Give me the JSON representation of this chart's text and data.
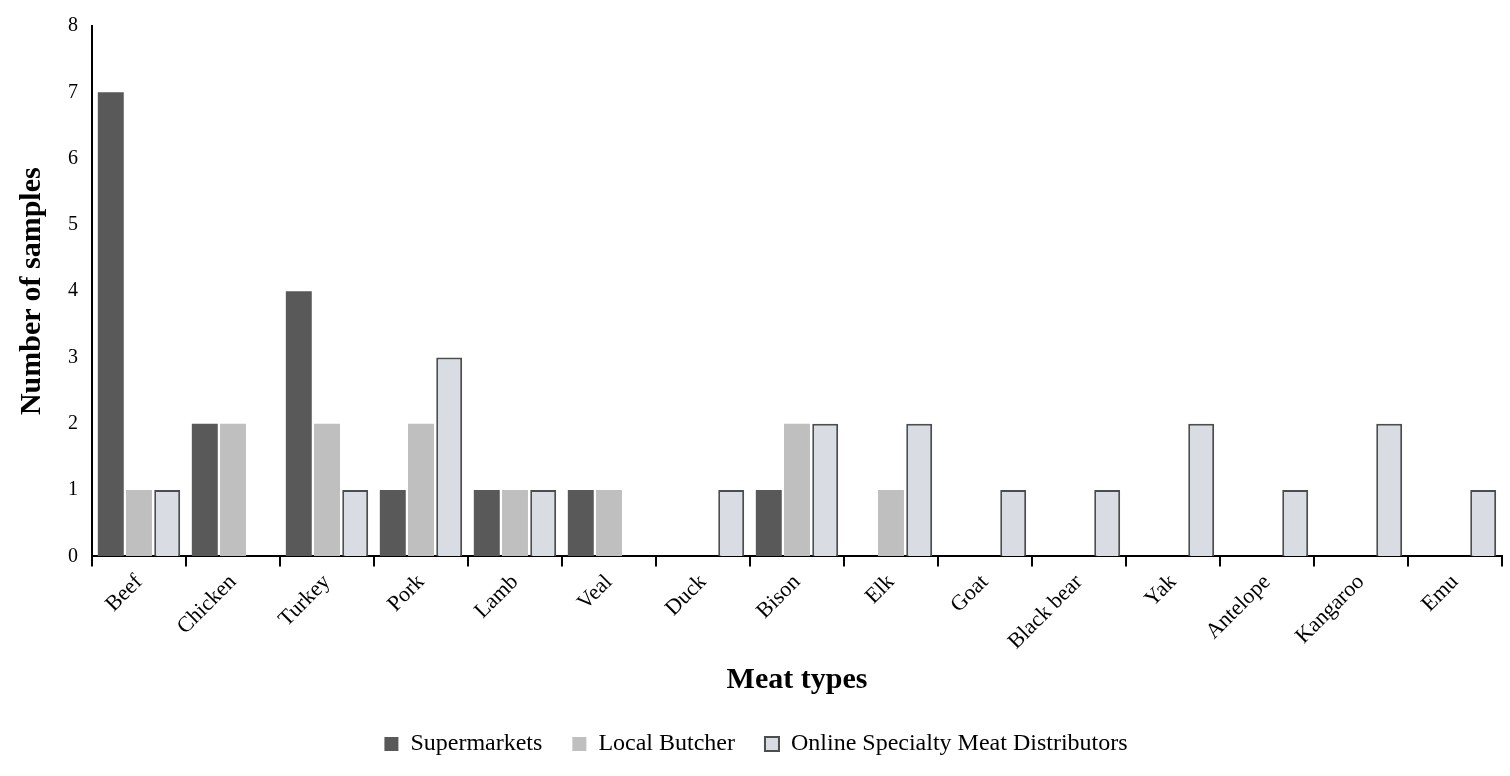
{
  "chart_data": {
    "type": "bar",
    "xlabel": "Meat types",
    "ylabel": "Number of samples",
    "categories": [
      "Beef",
      "Chicken",
      "Turkey",
      "Pork",
      "Lamb",
      "Veal",
      "Duck",
      "Bison",
      "Elk",
      "Goat",
      "Black bear",
      "Yak",
      "Antelope",
      "Kangaroo",
      "Emu"
    ],
    "series": [
      {
        "name": "Supermarkets",
        "color": "#595959",
        "values": [
          7,
          2,
          4,
          1,
          1,
          1,
          0,
          1,
          0,
          0,
          0,
          0,
          0,
          0,
          0
        ]
      },
      {
        "name": "Local Butcher",
        "color": "#bfbfbf",
        "values": [
          1,
          2,
          2,
          2,
          1,
          1,
          0,
          2,
          1,
          0,
          0,
          0,
          0,
          0,
          0
        ]
      },
      {
        "name": "Online Specialty Meat Distributors",
        "color": "#d9dde3",
        "values": [
          1,
          0,
          1,
          3,
          1,
          0,
          1,
          2,
          2,
          1,
          1,
          2,
          1,
          2,
          1
        ]
      }
    ],
    "ylim": [
      0,
      8
    ],
    "yticks": [
      0,
      1,
      2,
      3,
      4,
      5,
      6,
      7,
      8
    ],
    "grid": false,
    "legend": "bottom"
  }
}
